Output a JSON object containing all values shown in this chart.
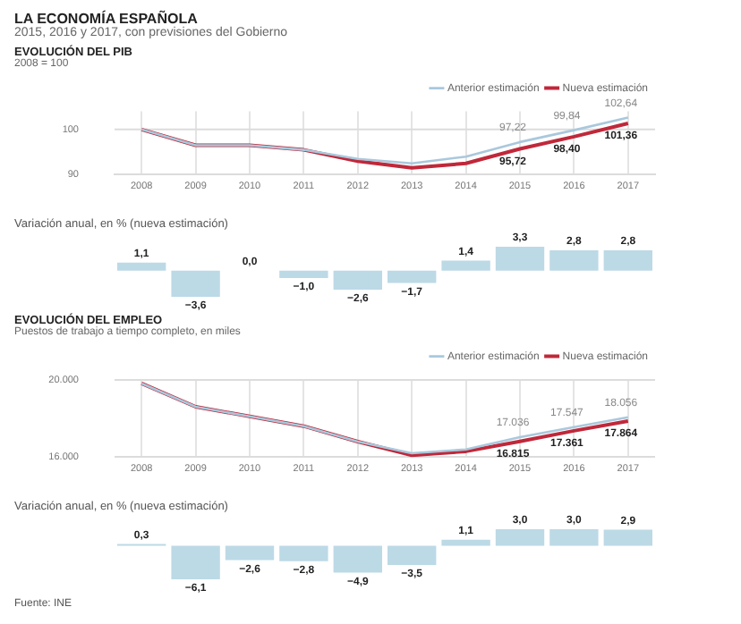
{
  "chart_data": [
    {
      "type": "line",
      "title": "EVOLUCIÓN DEL PIB",
      "subtitle": "2008 = 100",
      "annotations": [
        "LA ECONOMÍA ESPAÑOLA",
        "2015, 2016 y 2017, con previsiones del Gobierno"
      ],
      "categories": [
        "2008",
        "2009",
        "2010",
        "2011",
        "2012",
        "2013",
        "2014",
        "2015",
        "2016",
        "2017"
      ],
      "series": [
        {
          "name": "Anterior estimación",
          "color": "#a9c8dc",
          "values": [
            100,
            96.5,
            96.5,
            95.5,
            93.5,
            92.5,
            94,
            97.22,
            99.84,
            102.64
          ],
          "value_labels": [
            null,
            null,
            null,
            null,
            null,
            null,
            null,
            "97,22",
            "99,84",
            "102,64"
          ]
        },
        {
          "name": "Nueva estimación",
          "color": "#c0283a",
          "values": [
            100,
            96.5,
            96.5,
            95.5,
            93,
            91.5,
            92.5,
            95.72,
            98.4,
            101.36
          ],
          "value_labels": [
            null,
            null,
            null,
            null,
            null,
            null,
            null,
            "95,72",
            "98,40",
            "101,36"
          ]
        }
      ],
      "ylim": [
        90,
        104
      ],
      "yticks": [
        90,
        100
      ],
      "ref_lines": [
        {
          "axis": "y",
          "value": 100,
          "color": "#dcdcdc"
        }
      ],
      "grid": "x",
      "legend": "top right",
      "marker": "none"
    },
    {
      "type": "bar",
      "title": "Variación anual, en % (nueva estimación)",
      "categories": [
        null,
        null,
        null,
        null,
        null,
        null,
        null,
        null,
        null,
        null
      ],
      "values": [
        1.1,
        -3.6,
        0.0,
        -1.0,
        -2.6,
        -1.7,
        1.4,
        3.3,
        2.8,
        2.8
      ],
      "value_labels": [
        "1,1",
        "−3,6",
        "0,0",
        "−1,0",
        "−2,6",
        "−1,7",
        "1,4",
        "3,3",
        "2,8",
        "2,8"
      ],
      "color": "#bcd9e6",
      "tick_labels": false
    },
    {
      "type": "line",
      "title": "EVOLUCIÓN DEL EMPLEO",
      "subtitle": "Puestos de trabajo a tiempo completo, en miles",
      "categories": [
        "2008",
        "2009",
        "2010",
        "2011",
        "2012",
        "2013",
        "2014",
        "2015",
        "2016",
        "2017"
      ],
      "series": [
        {
          "name": "Anterior estimación",
          "color": "#a9c8dc",
          "values": [
            19800,
            18600,
            18100,
            17600,
            16800,
            16200,
            16400,
            17036,
            17547,
            18056
          ],
          "value_labels": [
            null,
            null,
            null,
            null,
            null,
            null,
            null,
            "17.036",
            "17.547",
            "18.056"
          ]
        },
        {
          "name": "Nueva estimación",
          "color": "#c0283a",
          "values": [
            19800,
            18600,
            18100,
            17600,
            16800,
            16100,
            16300,
            16815,
            17361,
            17864
          ],
          "value_labels": [
            null,
            null,
            null,
            null,
            null,
            null,
            null,
            "16.815",
            "17.361",
            "17.864"
          ]
        }
      ],
      "ylim": [
        16000,
        20000
      ],
      "yticks": [
        {
          "value": 16000,
          "label": "16.000"
        },
        {
          "value": 20000,
          "label": "20.000"
        }
      ],
      "grid": true,
      "legend": "top right",
      "marker": "none"
    },
    {
      "type": "bar",
      "title": "Variación anual, en % (nueva estimación)",
      "annotations": [
        "Fuente: INE"
      ],
      "categories": [
        null,
        null,
        null,
        null,
        null,
        null,
        null,
        null,
        null,
        null
      ],
      "values": [
        0.3,
        -6.1,
        -2.6,
        -2.8,
        -4.9,
        -3.5,
        1.1,
        3.0,
        3.0,
        2.9
      ],
      "value_labels": [
        "0,3",
        "−6,1",
        "−2,6",
        "−2,8",
        "−4,9",
        "−3,5",
        "1,1",
        "3,0",
        "3,0",
        "2,9"
      ],
      "color": "#bcd9e6",
      "tick_labels": false
    }
  ]
}
